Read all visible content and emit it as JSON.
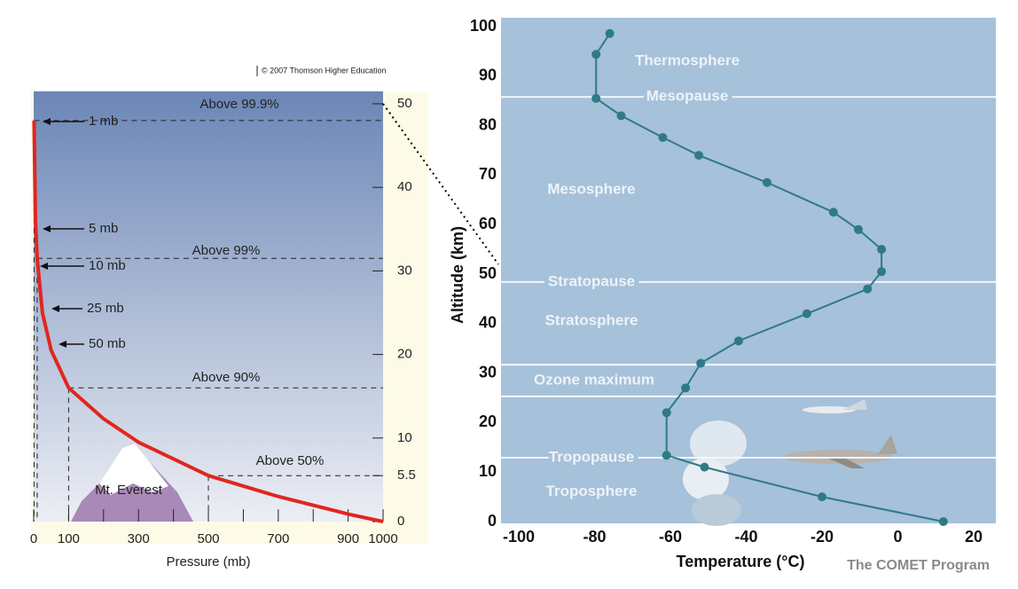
{
  "chart_data": [
    {
      "type": "line",
      "credit": "© 2007 Thomson Higher Education",
      "xlabel": "Pressure (mb)",
      "x": [
        1000,
        900,
        700,
        500,
        300,
        200,
        100,
        50,
        25,
        10,
        5,
        1
      ],
      "values": [
        0,
        0.9,
        3,
        5.5,
        9.5,
        12.3,
        16,
        20.5,
        25,
        31.5,
        36,
        48
      ],
      "color": "#e0261e",
      "xlim": [
        0,
        1000
      ],
      "ylim": [
        0,
        50
      ],
      "xticks": [
        0,
        100,
        300,
        500,
        700,
        900,
        1000
      ],
      "minor_xticks": [
        200,
        400,
        600,
        800
      ],
      "yticks": [
        0,
        5.5,
        10,
        20,
        30,
        40,
        50
      ],
      "annotations": [
        "Above 99.9%",
        "1 mb",
        "5 mb",
        "Above 99%",
        "10 mb",
        "25 mb",
        "50 mb",
        "Above 90%",
        "Above 50%"
      ],
      "landmark": "Mt. Everest"
    },
    {
      "type": "line",
      "xlabel": "Temperature (°C)",
      "ylabel": "Altitude (km)",
      "credit": "The COMET Program",
      "x": [
        12,
        -20,
        -51,
        -61,
        -61,
        -56,
        -52,
        -42,
        -24,
        -8,
        -4.3,
        -4.3,
        -10.4,
        -17,
        -34.5,
        -52.5,
        -62,
        -73,
        -79.6,
        -79.6,
        -76
      ],
      "values": [
        0,
        5,
        11,
        13.4,
        22,
        27,
        32,
        36.5,
        42,
        47,
        50.5,
        55,
        59,
        62.5,
        68.5,
        74,
        77.6,
        82,
        85.5,
        94.4,
        98.6
      ],
      "color": "#2e7a86",
      "xlim": [
        -100,
        20
      ],
      "ylim": [
        0,
        100
      ],
      "xticks": [
        -100,
        -80,
        -60,
        -40,
        -20,
        0,
        20
      ],
      "yticks": [
        0,
        10,
        20,
        30,
        40,
        50,
        60,
        70,
        80,
        90,
        100
      ],
      "boundaries": [
        85.8,
        48.4,
        31.7,
        25.3,
        12.9
      ],
      "layers": [
        {
          "label": "Thermosphere",
          "altitude": 93
        },
        {
          "label": "Mesopause",
          "altitude": 85.8
        },
        {
          "label": "Mesosphere",
          "altitude": 67
        },
        {
          "label": "Stratopause",
          "altitude": 48.4
        },
        {
          "label": "Stratosphere",
          "altitude": 40.5
        },
        {
          "label": "Ozone maximum",
          "altitude": 28.5
        },
        {
          "label": "Tropopause",
          "altitude": 12.9
        },
        {
          "label": "Troposphere",
          "altitude": 6
        }
      ]
    }
  ]
}
